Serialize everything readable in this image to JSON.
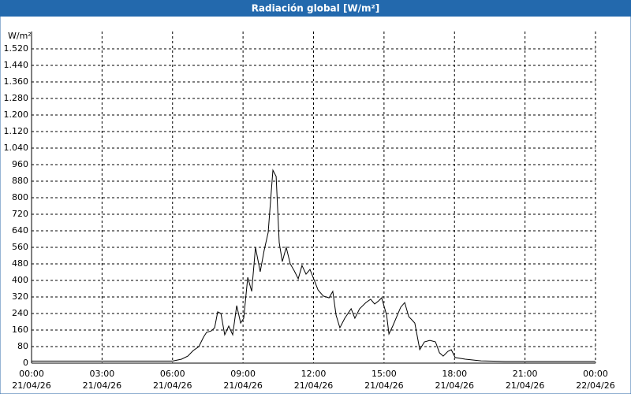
{
  "chart_data": {
    "type": "line",
    "title": "Radiación global [W/m²]",
    "y_unit": "W/m²",
    "color": "#000000",
    "grid": true,
    "x": [
      0,
      6.0,
      6.38,
      6.65,
      6.88,
      7.12,
      7.32,
      7.45,
      7.65,
      7.79,
      7.92,
      8.06,
      8.22,
      8.39,
      8.56,
      8.73,
      8.9,
      9.03,
      9.2,
      9.37,
      9.53,
      9.73,
      9.9,
      10.07,
      10.27,
      10.41,
      10.54,
      10.67,
      10.84,
      11.01,
      11.18,
      11.35,
      11.51,
      11.68,
      11.85,
      12.02,
      12.19,
      12.42,
      12.66,
      12.82,
      12.96,
      13.12,
      13.33,
      13.6,
      13.76,
      13.96,
      14.23,
      14.43,
      14.6,
      14.77,
      14.9,
      15.11,
      15.21,
      15.37,
      15.54,
      15.71,
      15.88,
      16.05,
      16.18,
      16.31,
      16.52,
      16.72,
      16.95,
      17.19,
      17.36,
      17.52,
      17.72,
      17.86,
      18.03,
      18.46,
      19.13,
      20.14,
      24
    ],
    "values": [
      10,
      10,
      19,
      34,
      61,
      80,
      126,
      149,
      156,
      171,
      248,
      240,
      137,
      179,
      137,
      278,
      194,
      217,
      415,
      347,
      560,
      442,
      545,
      632,
      933,
      903,
      583,
      491,
      560,
      480,
      446,
      408,
      472,
      430,
      453,
      404,
      354,
      324,
      316,
      347,
      232,
      171,
      217,
      263,
      217,
      263,
      293,
      309,
      286,
      301,
      316,
      232,
      141,
      179,
      225,
      270,
      293,
      225,
      210,
      194,
      65,
      103,
      110,
      103,
      50,
      34,
      57,
      65,
      27,
      19,
      11,
      8,
      8
    ],
    "xlim": [
      0,
      24
    ],
    "xticks": [
      {
        "value": 0,
        "time": "00:00",
        "date": "21/04/26"
      },
      {
        "value": 3,
        "time": "03:00",
        "date": "21/04/26"
      },
      {
        "value": 6,
        "time": "06:00",
        "date": "21/04/26"
      },
      {
        "value": 9,
        "time": "09:00",
        "date": "21/04/26"
      },
      {
        "value": 12,
        "time": "12:00",
        "date": "21/04/26"
      },
      {
        "value": 15,
        "time": "15:00",
        "date": "21/04/26"
      },
      {
        "value": 18,
        "time": "18:00",
        "date": "21/04/26"
      },
      {
        "value": 21,
        "time": "21:00",
        "date": "21/04/26"
      },
      {
        "value": 24,
        "time": "00:00",
        "date": "22/04/26"
      }
    ],
    "ylim": [
      0,
      1520
    ],
    "yticks": [
      0,
      80,
      160,
      240,
      320,
      400,
      480,
      560,
      640,
      720,
      800,
      880,
      960,
      {
        "value": 1040,
        "label": "1.040"
      },
      {
        "value": 1120,
        "label": "1.120"
      },
      {
        "value": 1200,
        "label": "1.200"
      },
      {
        "value": 1280,
        "label": "1.280"
      },
      {
        "value": 1360,
        "label": "1.360"
      },
      {
        "value": 1440,
        "label": "1.440"
      },
      {
        "value": 1520,
        "label": "1.520"
      }
    ]
  }
}
